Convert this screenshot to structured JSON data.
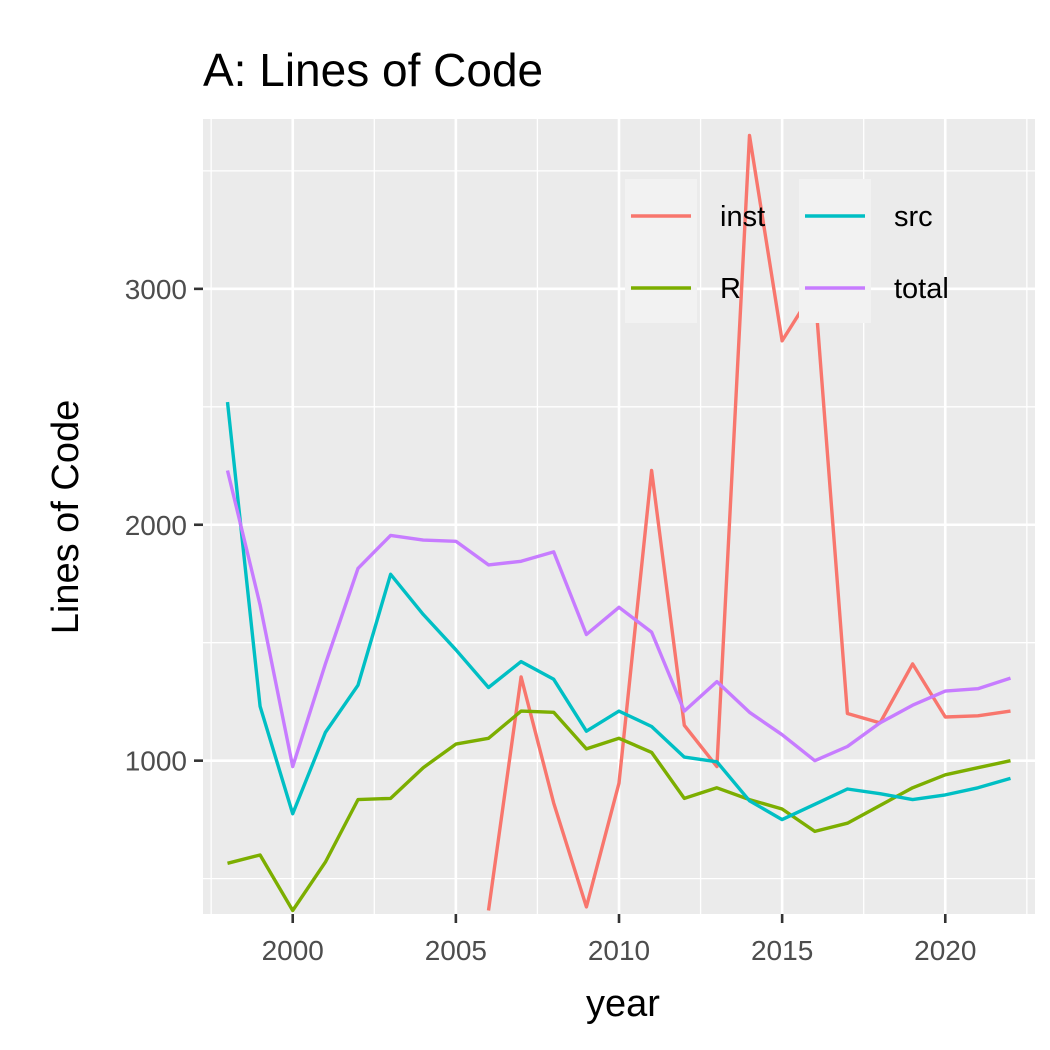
{
  "chart_data": {
    "type": "line",
    "title": "A: Lines of Code",
    "xlabel": "year",
    "ylabel": "Lines of Code",
    "xlim": [
      1997.25,
      2022.75
    ],
    "ylim": [
      350,
      3720
    ],
    "x_ticks": [
      2000,
      2005,
      2010,
      2015,
      2020
    ],
    "y_ticks": [
      1000,
      2000,
      3000
    ],
    "grid": true,
    "legend_position": "top-right (inside)",
    "series": [
      {
        "name": "inst",
        "color": "#F8766D",
        "points": [
          [
            2006,
            365
          ],
          [
            2007,
            1355
          ],
          [
            2008,
            820
          ],
          [
            2009,
            380
          ],
          [
            2010,
            905
          ],
          [
            2011,
            2230
          ],
          [
            2012,
            1150
          ],
          [
            2013,
            975
          ],
          [
            2014,
            3650
          ],
          [
            2015,
            2780
          ],
          [
            2016,
            3000
          ],
          [
            2017,
            1200
          ],
          [
            2018,
            1160
          ],
          [
            2019,
            1410
          ],
          [
            2020,
            1185
          ],
          [
            2021,
            1190
          ],
          [
            2022,
            1210
          ]
        ]
      },
      {
        "name": "R",
        "color": "#7CAE00",
        "points": [
          [
            1998,
            565
          ],
          [
            1999,
            600
          ],
          [
            2000,
            365
          ],
          [
            2001,
            570
          ],
          [
            2002,
            835
          ],
          [
            2003,
            840
          ],
          [
            2004,
            970
          ],
          [
            2005,
            1070
          ],
          [
            2006,
            1095
          ],
          [
            2007,
            1210
          ],
          [
            2008,
            1205
          ],
          [
            2009,
            1050
          ],
          [
            2010,
            1095
          ],
          [
            2011,
            1035
          ],
          [
            2012,
            840
          ],
          [
            2013,
            885
          ],
          [
            2014,
            835
          ],
          [
            2015,
            795
          ],
          [
            2016,
            700
          ],
          [
            2017,
            735
          ],
          [
            2018,
            810
          ],
          [
            2019,
            885
          ],
          [
            2020,
            940
          ],
          [
            2021,
            970
          ],
          [
            2022,
            1000
          ]
        ]
      },
      {
        "name": "src",
        "color": "#00BFC4",
        "points": [
          [
            1998,
            2520
          ],
          [
            1999,
            1230
          ],
          [
            2000,
            775
          ],
          [
            2001,
            1120
          ],
          [
            2002,
            1320
          ],
          [
            2003,
            1790
          ],
          [
            2004,
            1620
          ],
          [
            2005,
            1470
          ],
          [
            2006,
            1310
          ],
          [
            2007,
            1420
          ],
          [
            2008,
            1345
          ],
          [
            2009,
            1125
          ],
          [
            2010,
            1210
          ],
          [
            2011,
            1145
          ],
          [
            2012,
            1015
          ],
          [
            2013,
            995
          ],
          [
            2014,
            830
          ],
          [
            2015,
            750
          ],
          [
            2016,
            815
          ],
          [
            2017,
            880
          ],
          [
            2018,
            860
          ],
          [
            2019,
            835
          ],
          [
            2020,
            855
          ],
          [
            2021,
            885
          ],
          [
            2022,
            925
          ]
        ]
      },
      {
        "name": "total",
        "color": "#C77CFF",
        "points": [
          [
            1998,
            2230
          ],
          [
            1999,
            1660
          ],
          [
            2000,
            975
          ],
          [
            2001,
            1410
          ],
          [
            2002,
            1815
          ],
          [
            2003,
            1955
          ],
          [
            2004,
            1935
          ],
          [
            2005,
            1930
          ],
          [
            2006,
            1830
          ],
          [
            2007,
            1845
          ],
          [
            2008,
            1885
          ],
          [
            2009,
            1535
          ],
          [
            2010,
            1650
          ],
          [
            2011,
            1545
          ],
          [
            2012,
            1210
          ],
          [
            2013,
            1335
          ],
          [
            2014,
            1205
          ],
          [
            2015,
            1110
          ],
          [
            2016,
            1000
          ],
          [
            2017,
            1060
          ],
          [
            2018,
            1160
          ],
          [
            2019,
            1235
          ],
          [
            2020,
            1295
          ],
          [
            2021,
            1305
          ],
          [
            2022,
            1350
          ]
        ]
      }
    ]
  }
}
